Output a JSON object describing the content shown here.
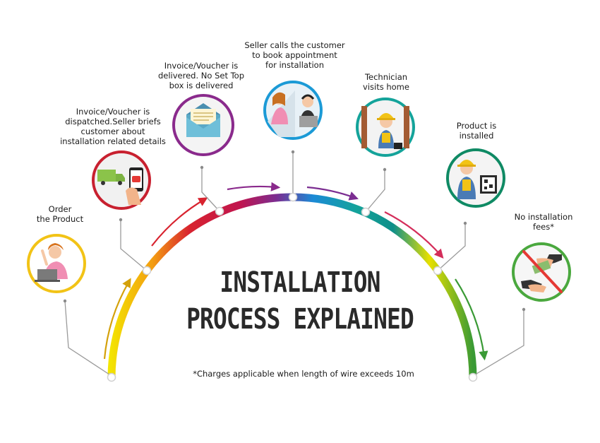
{
  "title": {
    "line1": "INSTALLATION",
    "line2": "PROCESS EXPLAINED"
  },
  "footnote": "*Charges applicable when length of wire exceeds 10m",
  "steps": [
    {
      "id": "order",
      "lines": [
        "Order",
        "the Product"
      ],
      "color": "#f2c316",
      "icon": "woman-laptop-icon"
    },
    {
      "id": "dispatch",
      "lines": [
        "Invoice/Voucher is",
        "dispatched.Seller briefs",
        "customer about",
        "installation related details"
      ],
      "color": "#c8202f",
      "icon": "truck-phone-icon"
    },
    {
      "id": "delivered",
      "lines": [
        "Invoice/Voucher is",
        "delivered. No Set Top",
        "box is delivered"
      ],
      "color": "#8a2a8c",
      "icon": "envelope-icon"
    },
    {
      "id": "calls",
      "lines": [
        "Seller calls the customer",
        "to book appointment",
        "for installation"
      ],
      "color": "#1b9ad6",
      "icon": "phone-call-icon"
    },
    {
      "id": "visit",
      "lines": [
        "Technician",
        "visits home"
      ],
      "color": "#14a39a",
      "icon": "technician-icon"
    },
    {
      "id": "installed",
      "lines": [
        "Product is",
        "installed"
      ],
      "color": "#0f8a64",
      "icon": "technician-screen-icon"
    },
    {
      "id": "fees",
      "lines": [
        "No installation",
        "fees*"
      ],
      "color": "#4aa83e",
      "icon": "no-money-icon"
    }
  ],
  "colors": {
    "arc_start": "#f3e600",
    "arc_mid": "#8a2a8c",
    "arc_end": "#3a9a35"
  }
}
